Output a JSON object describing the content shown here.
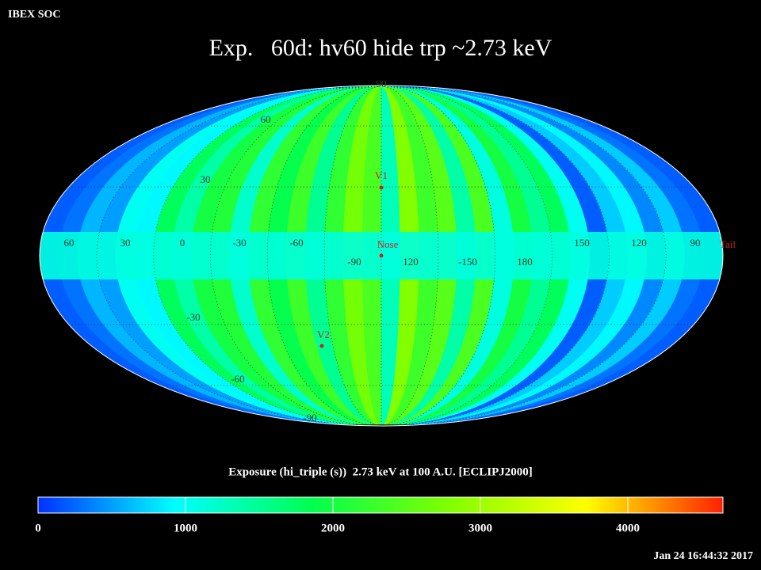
{
  "header": "IBEX SOC",
  "title": "Exp.   60d: hv60 hide trp ~2.73 keV",
  "timestamp": "Jan 24 16:44:32 2017",
  "chart_data": {
    "type": "heatmap",
    "values": [
      200,
      300,
      600,
      500,
      1000,
      900,
      1800,
      1400,
      2000,
      2100,
      1200,
      2200,
      1900,
      2300,
      1500,
      2200,
      2700,
      2400,
      1300,
      2800,
      2300,
      2500,
      1400,
      2400,
      1100,
      2000,
      1500,
      1800,
      1000,
      200,
      700,
      900,
      400,
      700,
      300,
      200
    ],
    "band_value": 1100,
    "colorbar": {
      "title": "Exposure (hi_triple (s))  2.73 keV at 100 A.U. [ECLIPJ2000]",
      "lim": [
        0,
        4645
      ],
      "ticks": [
        0,
        1000,
        2000,
        3000,
        4000
      ],
      "colors": [
        "#0030ff",
        "#00ffff",
        "#00ff50",
        "#80ff00",
        "#ffff00",
        "#ff2000"
      ]
    },
    "lon_labels": [
      "60",
      "30",
      "0",
      "-30",
      "-60",
      "-90",
      "120",
      "-150",
      "180",
      "150",
      "120",
      "90"
    ],
    "lat_labels": [
      "90",
      "60",
      "30",
      "-30",
      "-60",
      "-90"
    ],
    "markers": [
      {
        "label": "V1",
        "color": "#d02020"
      },
      {
        "label": "Nose",
        "color": "#d02020"
      },
      {
        "label": "V2",
        "color": "#d02020"
      },
      {
        "label": "Tail",
        "color": "#d02020"
      }
    ]
  }
}
